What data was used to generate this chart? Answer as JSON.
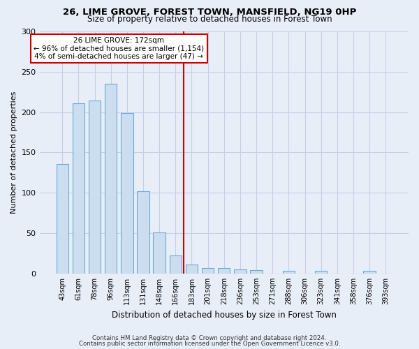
{
  "title": "26, LIME GROVE, FOREST TOWN, MANSFIELD, NG19 0HP",
  "subtitle": "Size of property relative to detached houses in Forest Town",
  "xlabel": "Distribution of detached houses by size in Forest Town",
  "ylabel": "Number of detached properties",
  "footer_line1": "Contains HM Land Registry data © Crown copyright and database right 2024.",
  "footer_line2": "Contains public sector information licensed under the Open Government Licence v3.0.",
  "bar_labels": [
    "43sqm",
    "61sqm",
    "78sqm",
    "96sqm",
    "113sqm",
    "131sqm",
    "148sqm",
    "166sqm",
    "183sqm",
    "201sqm",
    "218sqm",
    "236sqm",
    "253sqm",
    "271sqm",
    "288sqm",
    "306sqm",
    "323sqm",
    "341sqm",
    "358sqm",
    "376sqm",
    "393sqm"
  ],
  "bar_values": [
    136,
    211,
    214,
    235,
    199,
    102,
    51,
    22,
    11,
    7,
    7,
    5,
    4,
    0,
    3,
    0,
    3,
    0,
    0,
    3,
    0
  ],
  "bar_color": "#ccddf0",
  "bar_edge_color": "#6aaad4",
  "bg_color": "#e8eef8",
  "grid_color": "#c5cfe8",
  "annotation_text_line1": "26 LIME GROVE: 172sqm",
  "annotation_text_line2": "← 96% of detached houses are smaller (1,154)",
  "annotation_text_line3": "4% of semi-detached houses are larger (47) →",
  "annotation_box_color": "#ffffff",
  "annotation_line_color": "#cc0000",
  "ylim": [
    0,
    300
  ],
  "yticks": [
    0,
    50,
    100,
    150,
    200,
    250,
    300
  ]
}
